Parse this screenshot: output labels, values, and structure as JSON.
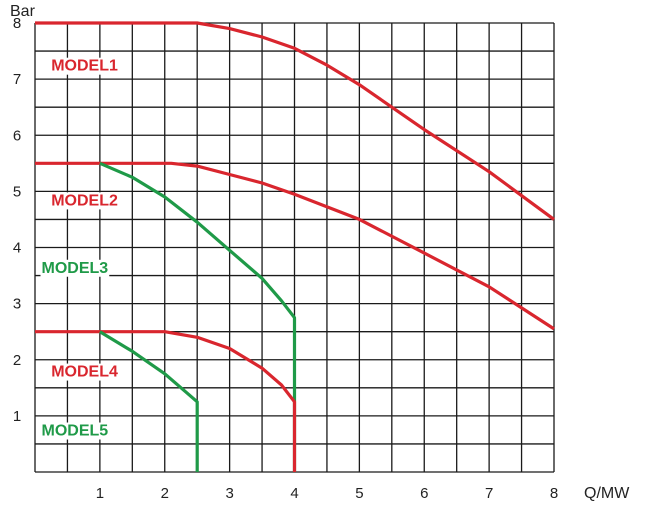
{
  "chart_data": {
    "type": "line",
    "title": "",
    "xlabel": "Q/MW",
    "ylabel": "Bar",
    "xlim": [
      0,
      8
    ],
    "ylim": [
      0,
      8
    ],
    "x_ticks": [
      "1",
      "2",
      "3",
      "4",
      "5",
      "6",
      "7",
      "8"
    ],
    "y_ticks": [
      "1",
      "2",
      "3",
      "4",
      "5",
      "6",
      "7",
      "8"
    ],
    "grid": true,
    "grid_step": 0.5,
    "series": [
      {
        "name": "MODEL1",
        "color": "#d9262e",
        "label_at": [
          0.25,
          7.15
        ],
        "points": [
          [
            0,
            8.0
          ],
          [
            2.5,
            8.0
          ],
          [
            3.0,
            7.9
          ],
          [
            3.5,
            7.75
          ],
          [
            4.0,
            7.55
          ],
          [
            4.5,
            7.25
          ],
          [
            5.0,
            6.9
          ],
          [
            6.0,
            6.1
          ],
          [
            7.0,
            5.35
          ],
          [
            8.0,
            4.5
          ]
        ]
      },
      {
        "name": "MODEL2",
        "color": "#d9262e",
        "label_at": [
          0.25,
          4.75
        ],
        "points": [
          [
            0,
            5.5
          ],
          [
            2.1,
            5.5
          ],
          [
            2.5,
            5.45
          ],
          [
            3.0,
            5.3
          ],
          [
            3.5,
            5.15
          ],
          [
            4.0,
            4.95
          ],
          [
            5.0,
            4.5
          ],
          [
            6.0,
            3.9
          ],
          [
            7.0,
            3.3
          ],
          [
            8.0,
            2.55
          ]
        ]
      },
      {
        "name": "MODEL3",
        "color": "#1f9a48",
        "label_at": [
          0.1,
          3.55
        ],
        "points": [
          [
            1.0,
            5.5
          ],
          [
            1.5,
            5.25
          ],
          [
            2.0,
            4.9
          ],
          [
            2.5,
            4.45
          ],
          [
            3.0,
            3.95
          ],
          [
            3.5,
            3.45
          ],
          [
            3.8,
            3.05
          ],
          [
            4.0,
            2.75
          ],
          [
            4.0,
            0
          ]
        ]
      },
      {
        "name": "MODEL4",
        "color": "#d9262e",
        "label_at": [
          0.25,
          1.7
        ],
        "points": [
          [
            0,
            2.5
          ],
          [
            2.0,
            2.5
          ],
          [
            2.5,
            2.4
          ],
          [
            3.0,
            2.2
          ],
          [
            3.5,
            1.85
          ],
          [
            3.8,
            1.55
          ],
          [
            4.0,
            1.25
          ],
          [
            4.0,
            0
          ]
        ]
      },
      {
        "name": "MODEL5",
        "color": "#1f9a48",
        "label_at": [
          0.1,
          0.65
        ],
        "points": [
          [
            1.0,
            2.5
          ],
          [
            1.5,
            2.15
          ],
          [
            2.0,
            1.75
          ],
          [
            2.3,
            1.45
          ],
          [
            2.5,
            1.25
          ],
          [
            2.5,
            0
          ]
        ]
      }
    ]
  }
}
